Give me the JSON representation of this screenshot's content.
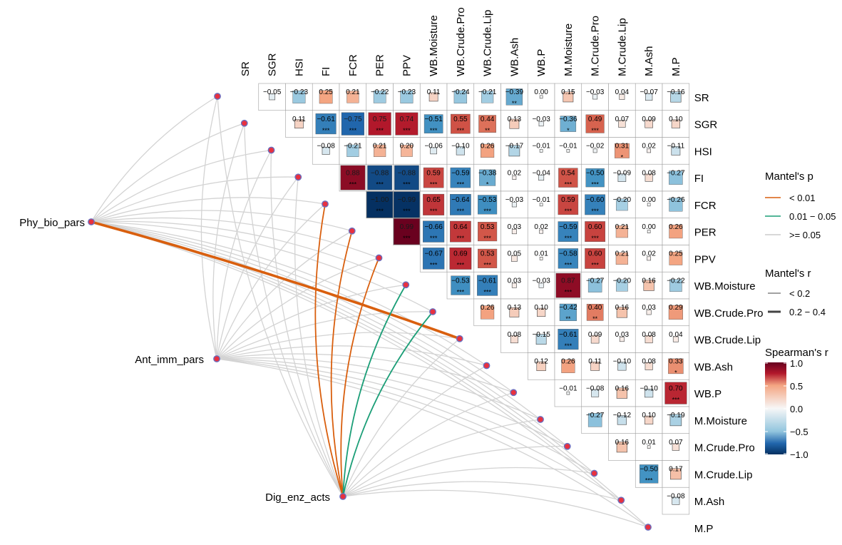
{
  "chart_data": {
    "type": "heatmap",
    "title": "",
    "variables": [
      "SR",
      "SGR",
      "HSI",
      "FI",
      "FCR",
      "PER",
      "PPV",
      "WB.Moisture",
      "WB.Crude.Pro",
      "WB.Crude.Lip",
      "WB.Ash",
      "WB.P",
      "M.Moisture",
      "M.Crude.Pro",
      "M.Crude.Lip",
      "M.Ash",
      "M.P"
    ],
    "correlation_rows": [
      {
        "values": [
          -0.05,
          -0.23,
          0.25,
          0.21,
          -0.22,
          -0.23,
          0.11,
          -0.24,
          -0.21,
          -0.39,
          0.0,
          0.15,
          -0.03,
          0.04,
          -0.07,
          -0.16
        ],
        "labels": [
          "−0.05",
          "−0.23",
          "0.25",
          "0.21",
          "−0.22",
          "−0.23",
          "0.11",
          "−0.24",
          "−0.21",
          "−0.39",
          "0.00",
          "0.15",
          "−0.03",
          "0.04",
          "−0.07",
          "−0.16"
        ],
        "sig": [
          "",
          "",
          "",
          "",
          "",
          "",
          "",
          "",
          "",
          "**",
          "",
          "",
          "",
          "",
          "",
          ""
        ]
      },
      {
        "values": [
          0.11,
          -0.61,
          -0.75,
          0.75,
          0.74,
          -0.51,
          0.55,
          0.44,
          0.13,
          -0.03,
          -0.36,
          0.49,
          0.07,
          0.09,
          0.1
        ],
        "labels": [
          "0.11",
          "−0.61",
          "−0.75",
          "0.75",
          "0.74",
          "−0.51",
          "0.55",
          "0.44",
          "0.13",
          "−0.03",
          "−0.36",
          "0.49",
          "0.07",
          "0.09",
          "0.10"
        ],
        "sig": [
          "",
          "***",
          "***",
          "***",
          "***",
          "***",
          "***",
          "**",
          "",
          "",
          "*",
          "***",
          "",
          "",
          ""
        ]
      },
      {
        "values": [
          -0.08,
          -0.21,
          0.21,
          0.2,
          -0.06,
          -0.1,
          0.26,
          -0.17,
          -0.01,
          -0.01,
          -0.02,
          0.31,
          0.02,
          -0.11
        ],
        "labels": [
          "−0.08",
          "−0.21",
          "0.21",
          "0.20",
          "−0.06",
          "−0.10",
          "0.26",
          "−0.17",
          "−0.01",
          "−0.01",
          "−0.02",
          "0.31",
          "0.02",
          "−0.11"
        ],
        "sig": [
          "",
          "",
          "",
          "",
          "",
          "",
          "",
          "",
          "",
          "",
          "",
          "*",
          "",
          ""
        ]
      },
      {
        "values": [
          0.88,
          -0.88,
          -0.88,
          0.59,
          -0.59,
          -0.38,
          0.02,
          -0.04,
          0.54,
          -0.5,
          -0.09,
          0.08,
          -0.27
        ],
        "labels": [
          "0.88",
          "−0.88",
          "−0.88",
          "0.59",
          "−0.59",
          "−0.38",
          "0.02",
          "−0.04",
          "0.54",
          "−0.50",
          "−0.09",
          "0.08",
          "−0.27"
        ],
        "sig": [
          "***",
          "***",
          "***",
          "***",
          "***",
          "*",
          "",
          "",
          "***",
          "***",
          "",
          "",
          ""
        ]
      },
      {
        "values": [
          -1.0,
          -0.99,
          0.65,
          -0.64,
          -0.53,
          -0.03,
          -0.01,
          0.59,
          -0.6,
          -0.2,
          0.0,
          -0.26
        ],
        "labels": [
          "−1.00",
          "−0.99",
          "0.65",
          "−0.64",
          "−0.53",
          "−0.03",
          "−0.01",
          "0.59",
          "−0.60",
          "−0.20",
          "0.00",
          "−0.26"
        ],
        "sig": [
          "***",
          "***",
          "***",
          "***",
          "***",
          "",
          "",
          "***",
          "***",
          "",
          "",
          ""
        ]
      },
      {
        "values": [
          0.99,
          -0.66,
          0.64,
          0.53,
          0.03,
          0.02,
          -0.59,
          0.6,
          0.21,
          0.0,
          0.26
        ],
        "labels": [
          "0.99",
          "−0.66",
          "0.64",
          "0.53",
          "0.03",
          "0.02",
          "−0.59",
          "0.60",
          "0.21",
          "0.00",
          "0.26"
        ],
        "sig": [
          "***",
          "***",
          "***",
          "***",
          "",
          "",
          "***",
          "***",
          "",
          "",
          ""
        ]
      },
      {
        "values": [
          -0.67,
          0.69,
          0.53,
          0.05,
          0.01,
          -0.58,
          0.6,
          0.21,
          0.02,
          0.25
        ],
        "labels": [
          "−0.67",
          "0.69",
          "0.53",
          "0.05",
          "0.01",
          "−0.58",
          "0.60",
          "0.21",
          "0.02",
          "0.25"
        ],
        "sig": [
          "***",
          "***",
          "***",
          "",
          "",
          "***",
          "***",
          "",
          "",
          ""
        ]
      },
      {
        "values": [
          -0.53,
          -0.61,
          0.03,
          -0.03,
          0.87,
          -0.27,
          -0.2,
          0.16,
          -0.22
        ],
        "labels": [
          "−0.53",
          "−0.61",
          "0.03",
          "−0.03",
          "0.87",
          "−0.27",
          "−0.20",
          "0.16",
          "−0.22"
        ],
        "sig": [
          "***",
          "***",
          "",
          "",
          "***",
          "",
          "",
          "",
          ""
        ]
      },
      {
        "values": [
          0.26,
          0.13,
          0.1,
          -0.42,
          0.4,
          0.16,
          0.03,
          0.29
        ],
        "labels": [
          "0.26",
          "0.13",
          "0.10",
          "−0.42",
          "0.40",
          "0.16",
          "0.03",
          "0.29"
        ],
        "sig": [
          "",
          "",
          "",
          "**",
          "**",
          "",
          "",
          ""
        ]
      },
      {
        "values": [
          0.08,
          -0.15,
          -0.61,
          0.09,
          0.03,
          0.08,
          0.04
        ],
        "labels": [
          "0.08",
          "−0.15",
          "−0.61",
          "0.09",
          "0.03",
          "0.08",
          "0.04"
        ],
        "sig": [
          "",
          "",
          "***",
          "",
          "",
          "",
          ""
        ]
      },
      {
        "values": [
          0.12,
          0.26,
          0.11,
          -0.1,
          0.08,
          0.33
        ],
        "labels": [
          "0.12",
          "0.26",
          "0.11",
          "−0.10",
          "0.08",
          "0.33"
        ],
        "sig": [
          "",
          "",
          "",
          "",
          "",
          "*"
        ]
      },
      {
        "values": [
          -0.01,
          -0.08,
          0.16,
          -0.1,
          0.7
        ],
        "labels": [
          "−0.01",
          "−0.08",
          "0.16",
          "−0.10",
          "0.70"
        ],
        "sig": [
          "",
          "",
          "",
          "",
          "***"
        ]
      },
      {
        "values": [
          -0.27,
          -0.12,
          0.1,
          -0.19
        ],
        "labels": [
          "−0.27",
          "−0.12",
          "0.10",
          "−0.19"
        ],
        "sig": [
          "",
          "",
          "",
          ""
        ]
      },
      {
        "values": [
          0.16,
          0.01,
          0.07
        ],
        "labels": [
          "0.16",
          "0.01",
          "0.07"
        ],
        "sig": [
          "",
          "",
          ""
        ]
      },
      {
        "values": [
          -0.5,
          0.17
        ],
        "labels": [
          "−0.50",
          "0.17"
        ],
        "sig": [
          "***",
          ""
        ]
      },
      {
        "values": [
          -0.08
        ],
        "labels": [
          "−0.08"
        ],
        "sig": [
          ""
        ]
      }
    ],
    "mantel_groups": [
      "Phy_bio_pars",
      "Ant_imm_pars",
      "Dig_enz_acts"
    ],
    "mantel_edges": [
      {
        "from": "Phy_bio_pars",
        "to": "WB.Crude.Lip",
        "p": "< 0.01",
        "r": "0.2 − 0.4"
      },
      {
        "from": "Dig_enz_acts",
        "to": "FCR",
        "p": "< 0.01",
        "r": "< 0.2"
      },
      {
        "from": "Dig_enz_acts",
        "to": "PER",
        "p": "< 0.01",
        "r": "< 0.2"
      },
      {
        "from": "Dig_enz_acts",
        "to": "PPV",
        "p": "< 0.01",
        "r": "< 0.2"
      },
      {
        "from": "Dig_enz_acts",
        "to": "WB.Moisture",
        "p": "0.01 − 0.05",
        "r": "< 0.2"
      },
      {
        "from": "Dig_enz_acts",
        "to": "WB.Crude.Pro",
        "p": "0.01 − 0.05",
        "r": "< 0.2"
      }
    ],
    "legend": {
      "mantel_p_title": "Mantel's p",
      "mantel_p": [
        {
          "label": "< 0.01",
          "color": "#d95f0e"
        },
        {
          "label": "0.01 − 0.05",
          "color": "#1b9e77"
        },
        {
          "label": ">= 0.05",
          "color": "#cccccc"
        }
      ],
      "mantel_r_title": "Mantel's r",
      "mantel_r": [
        {
          "label": "< 0.2",
          "thick": false
        },
        {
          "label": "0.2 − 0.4",
          "thick": true
        }
      ],
      "spearman_title": "Spearman's r",
      "spearman_ticks": [
        "1.0",
        "0.5",
        "0.0",
        "−0.5",
        "−1.0"
      ]
    },
    "colors": {
      "negative": "#2166ac",
      "neutral": "#f7f7f7",
      "positive": "#b2182b",
      "point": "#e8313f",
      "point_border": "#6a6fc0"
    }
  }
}
